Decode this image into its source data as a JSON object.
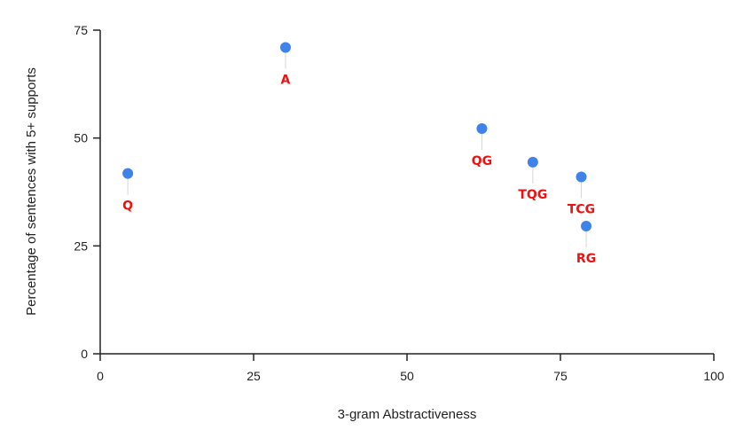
{
  "chart_data": {
    "type": "scatter",
    "title": "",
    "xlabel": "3-gram Abstractiveness",
    "ylabel": "Percentage of sentences with 5+ supports",
    "xlim": [
      0,
      100
    ],
    "ylim": [
      0,
      75
    ],
    "xticks": [
      0,
      25,
      50,
      75,
      100
    ],
    "yticks": [
      0,
      25,
      50,
      75
    ],
    "grid": false,
    "point_color": "#3f82ea",
    "label_color": "#ee1111",
    "points": [
      {
        "label": "Q",
        "x": 4.5,
        "y": 41.8
      },
      {
        "label": "A",
        "x": 30.2,
        "y": 71.0
      },
      {
        "label": "QG",
        "x": 62.2,
        "y": 52.2
      },
      {
        "label": "TQG",
        "x": 70.5,
        "y": 44.4
      },
      {
        "label": "TCG",
        "x": 78.4,
        "y": 41.0
      },
      {
        "label": "RG",
        "x": 79.2,
        "y": 29.6
      }
    ]
  }
}
